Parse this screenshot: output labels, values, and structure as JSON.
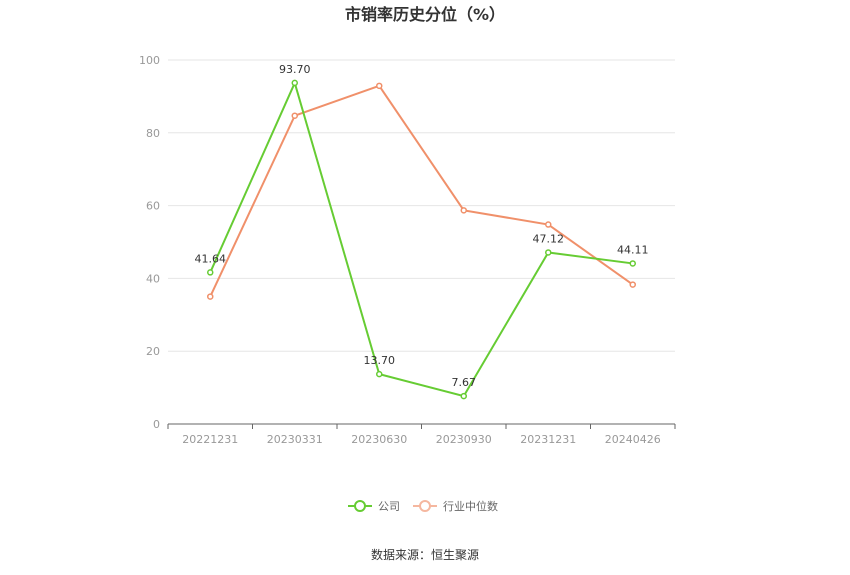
{
  "chart_data": {
    "type": "line",
    "title": "市销率历史分位（%）",
    "categories": [
      "20221231",
      "20230331",
      "20230630",
      "20230930",
      "20231231",
      "20240426"
    ],
    "ylim": [
      0,
      100
    ],
    "yticks": [
      0,
      20,
      40,
      60,
      80,
      100
    ],
    "grid": true,
    "legend_position": "bottom",
    "series": [
      {
        "name": "公司",
        "color": "#66cc33",
        "values": [
          41.64,
          93.7,
          13.7,
          7.67,
          47.12,
          44.11
        ],
        "labels": [
          "41.64",
          "93.70",
          "13.70",
          "7.67",
          "47.12",
          "44.11"
        ]
      },
      {
        "name": "行业中位数",
        "color": "#f0906a",
        "values": [
          35.0,
          84.7,
          92.9,
          58.7,
          54.8,
          38.3
        ]
      }
    ]
  },
  "source": "数据来源：恒生聚源"
}
